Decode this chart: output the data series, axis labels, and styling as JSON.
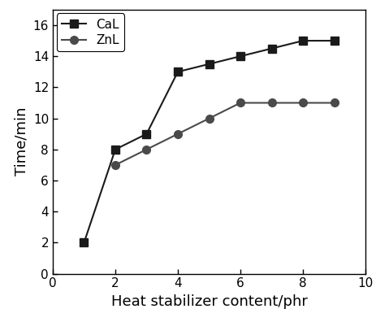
{
  "CaL_x": [
    1,
    2,
    3,
    4,
    5,
    6,
    7,
    8,
    9
  ],
  "CaL_y": [
    2,
    8,
    9,
    13,
    13.5,
    14,
    14.5,
    15,
    15
  ],
  "ZnL_x": [
    2,
    3,
    4,
    5,
    6,
    7,
    8,
    9
  ],
  "ZnL_y": [
    7,
    8,
    9,
    10,
    11,
    11,
    11,
    11
  ],
  "CaL_label": "CaL",
  "ZnL_label": "ZnL",
  "CaL_color": "#1a1a1a",
  "ZnL_color": "#4a4a4a",
  "CaL_marker": "s",
  "ZnL_marker": "o",
  "xlabel": "Heat stabilizer content/phr",
  "ylabel": "Time/min",
  "xlim": [
    0,
    10
  ],
  "ylim": [
    0,
    17
  ],
  "xticks": [
    0,
    2,
    4,
    6,
    8,
    10
  ],
  "yticks": [
    0,
    2,
    4,
    6,
    8,
    10,
    12,
    14,
    16
  ],
  "marker_size": 7,
  "line_width": 1.5,
  "background_color": "#ffffff",
  "legend_fontsize": 11,
  "axis_fontsize": 13,
  "tick_fontsize": 11
}
